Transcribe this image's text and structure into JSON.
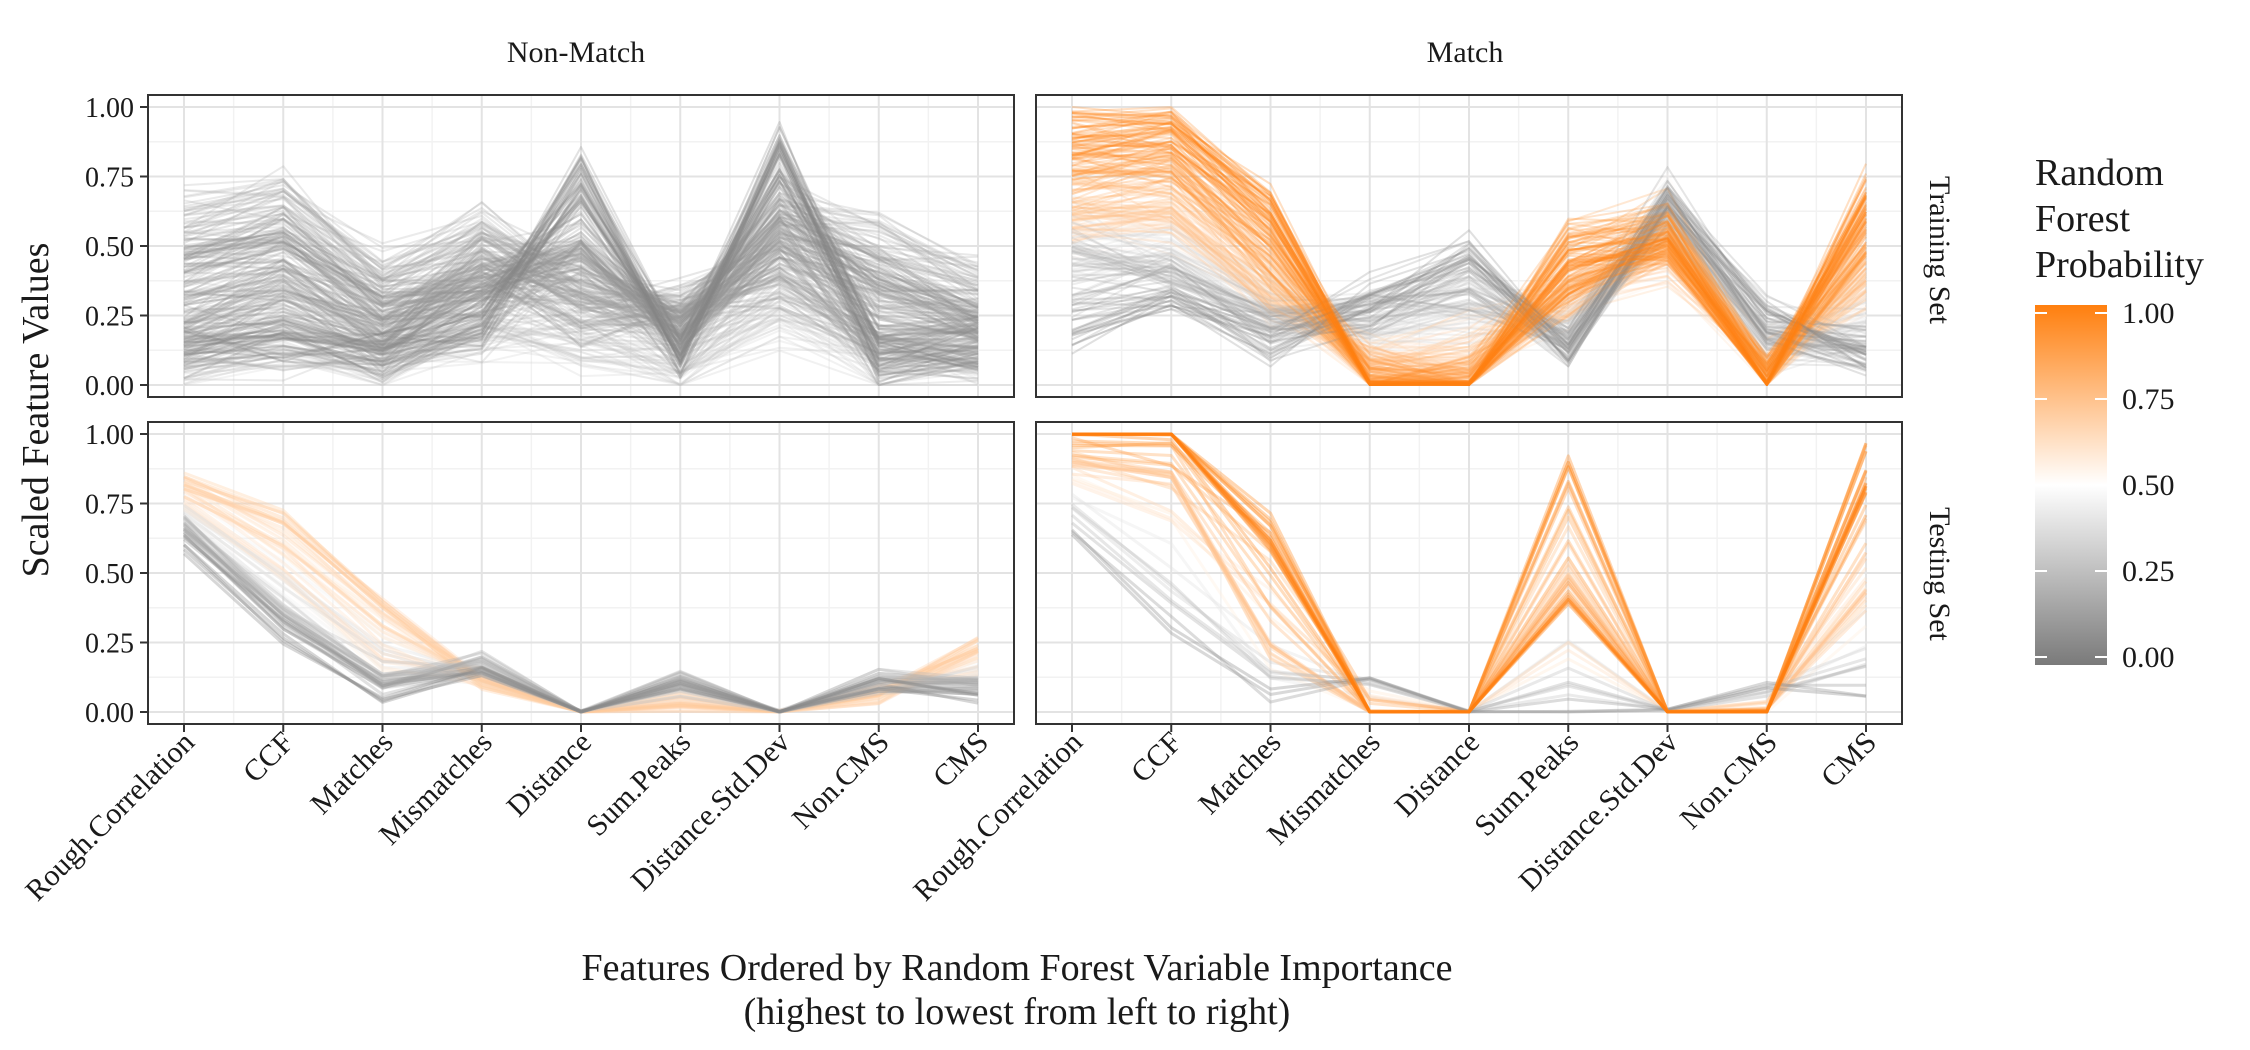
{
  "chart_data": {
    "type": "line",
    "subtype": "faceted parallel coordinates",
    "facet_columns": [
      "Non-Match",
      "Match"
    ],
    "facet_rows": [
      "Training Set",
      "Testing Set"
    ],
    "x_categories": [
      "Rough.Correlation",
      "CCF",
      "Matches",
      "Mismatches",
      "Distance",
      "Sum.Peaks",
      "Distance.Std.Dev",
      "Non.CMS",
      "CMS"
    ],
    "y_ticks": [
      "0.00",
      "0.25",
      "0.50",
      "0.75",
      "1.00"
    ],
    "ylim": [
      0,
      1
    ],
    "ylabel": "Scaled Feature Values",
    "xlabel": "Features Ordered by Random Forest Variable Importance",
    "xlabel_sub": "(highest to lowest from left to right)",
    "grid": true,
    "legend": {
      "title_lines": [
        "Random",
        "Forest",
        "Probability"
      ],
      "ticks": [
        "1.00",
        "0.75",
        "0.50",
        "0.25",
        "0.00"
      ],
      "colors": {
        "low": "#7a7a7a",
        "mid": "#ffffff",
        "high": "#ff7f0e"
      },
      "placement": "right"
    },
    "panels": [
      {
        "column": "Non-Match",
        "row": "Training Set",
        "line_count": 260,
        "profiles": [
          {
            "prob": 0.05,
            "values": [
              0.12,
              0.15,
              0.1,
              0.2,
              0.8,
              0.1,
              0.88,
              0.08,
              0.1
            ]
          },
          {
            "prob": 0.1,
            "values": [
              0.45,
              0.55,
              0.3,
              0.35,
              0.5,
              0.2,
              0.55,
              0.4,
              0.25
            ]
          },
          {
            "prob": 0.15,
            "values": [
              0.2,
              0.3,
              0.15,
              0.45,
              0.25,
              0.3,
              0.4,
              0.15,
              0.2
            ]
          },
          {
            "prob": 0.2,
            "values": [
              0.65,
              0.7,
              0.4,
              0.6,
              0.35,
              0.25,
              0.65,
              0.55,
              0.4
            ]
          },
          {
            "prob": 0.3,
            "values": [
              0.05,
              0.1,
              0.05,
              0.15,
              0.1,
              0.05,
              0.2,
              0.05,
              0.05
            ]
          }
        ]
      },
      {
        "column": "Match",
        "row": "Training Set",
        "line_count": 300,
        "profiles": [
          {
            "prob": 1.0,
            "values": [
              0.95,
              0.95,
              0.65,
              0.0,
              0.0,
              0.4,
              0.5,
              0.01,
              0.7
            ]
          },
          {
            "prob": 0.9,
            "values": [
              0.75,
              0.8,
              0.45,
              0.03,
              0.02,
              0.55,
              0.6,
              0.03,
              0.5
            ]
          },
          {
            "prob": 0.7,
            "values": [
              0.6,
              0.6,
              0.3,
              0.08,
              0.05,
              0.3,
              0.45,
              0.05,
              0.35
            ]
          },
          {
            "prob": 0.2,
            "values": [
              0.5,
              0.4,
              0.25,
              0.25,
              0.3,
              0.15,
              0.6,
              0.15,
              0.12
            ]
          },
          {
            "prob": 0.05,
            "values": [
              0.2,
              0.3,
              0.15,
              0.3,
              0.5,
              0.1,
              0.7,
              0.25,
              0.1
            ]
          }
        ]
      },
      {
        "column": "Non-Match",
        "row": "Testing Set",
        "line_count": 80,
        "profiles": [
          {
            "prob": 0.05,
            "values": [
              0.6,
              0.25,
              0.05,
              0.15,
              0.0,
              0.1,
              0.0,
              0.1,
              0.05
            ]
          },
          {
            "prob": 0.2,
            "values": [
              0.68,
              0.35,
              0.12,
              0.18,
              0.0,
              0.12,
              0.0,
              0.12,
              0.1
            ]
          },
          {
            "prob": 0.6,
            "values": [
              0.75,
              0.5,
              0.18,
              0.12,
              0.0,
              0.05,
              0.0,
              0.08,
              0.15
            ]
          },
          {
            "prob": 0.7,
            "values": [
              0.84,
              0.7,
              0.4,
              0.1,
              0.0,
              0.03,
              0.0,
              0.05,
              0.25
            ]
          }
        ]
      },
      {
        "column": "Match",
        "row": "Testing Set",
        "line_count": 50,
        "profiles": [
          {
            "prob": 1.0,
            "values": [
              1.0,
              1.0,
              0.6,
              0.0,
              0.0,
              0.4,
              0.0,
              0.0,
              0.8
            ]
          },
          {
            "prob": 0.95,
            "values": [
              1.0,
              1.0,
              0.7,
              0.0,
              0.0,
              0.9,
              0.0,
              0.0,
              0.95
            ]
          },
          {
            "prob": 0.7,
            "values": [
              0.9,
              0.85,
              0.2,
              0.0,
              0.0,
              0.5,
              0.0,
              0.01,
              0.4
            ]
          },
          {
            "prob": 0.1,
            "values": [
              0.65,
              0.3,
              0.05,
              0.12,
              0.0,
              0.0,
              0.01,
              0.1,
              0.05
            ]
          }
        ]
      }
    ]
  }
}
